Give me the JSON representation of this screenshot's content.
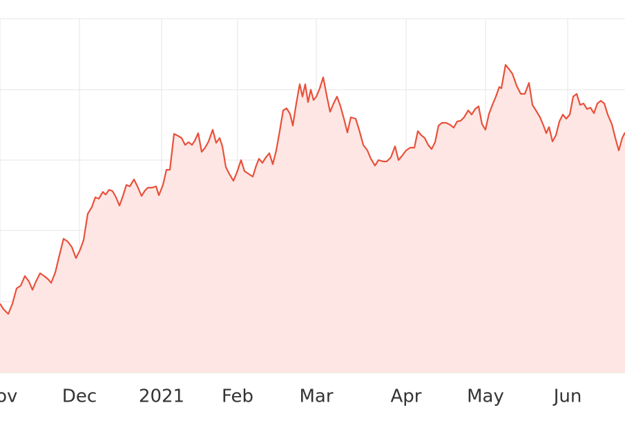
{
  "chart_data": {
    "type": "area",
    "color": "#e8503a",
    "fill": "#fde6e3",
    "grid": true,
    "xlim": [
      0,
      905
    ],
    "ylim": [
      0,
      513
    ],
    "xticks": [
      {
        "value": 0,
        "label": "Nov"
      },
      {
        "value": 115,
        "label": "Dec"
      },
      {
        "value": 234,
        "label": "2021"
      },
      {
        "value": 344,
        "label": "Feb"
      },
      {
        "value": 458,
        "label": "Mar"
      },
      {
        "value": 588,
        "label": "Apr"
      },
      {
        "value": 703,
        "label": "May"
      },
      {
        "value": 822,
        "label": "Jun"
      }
    ],
    "ygrid": [
      103,
      206,
      308,
      410,
      513
    ],
    "series": [
      {
        "x": [
          0,
          5,
          12,
          18,
          24,
          30,
          36,
          42,
          47,
          52,
          58,
          64,
          70,
          74,
          80,
          86,
          92,
          98,
          104,
          110,
          116,
          121,
          127,
          133,
          138,
          143,
          149,
          153,
          158,
          163,
          168,
          173,
          178,
          183,
          188,
          194,
          199,
          205,
          210,
          214,
          220,
          226,
          230,
          236,
          241,
          246,
          252,
          258,
          263,
          268,
          273,
          278,
          282,
          287,
          292,
          297,
          302,
          308,
          313,
          318,
          322,
          327,
          332,
          338,
          343,
          349,
          354,
          360,
          366,
          371,
          375,
          380,
          385,
          390,
          395,
          400,
          405,
          410,
          415,
          420,
          424,
          429,
          434,
          438,
          442,
          446,
          450,
          454,
          458,
          463,
          468,
          473,
          478,
          483,
          488,
          493,
          498,
          503,
          508,
          515,
          520,
          526,
          532,
          537,
          543,
          548,
          555,
          560,
          566,
          572,
          577,
          582,
          588,
          594,
          600,
          605,
          610,
          615,
          620,
          625,
          630,
          635,
          640,
          646,
          652,
          657,
          662,
          667,
          672,
          678,
          683,
          688,
          693,
          698,
          703,
          708,
          713,
          718,
          723,
          726,
          732,
          737,
          742,
          748,
          754,
          760,
          766,
          771,
          776,
          782,
          787,
          791,
          795,
          800,
          805,
          810,
          815,
          820,
          825,
          830,
          835,
          840,
          845,
          850,
          855,
          860,
          865,
          870,
          875,
          880,
          886,
          891,
          896,
          901,
          905
        ],
        "values": [
          100,
          92,
          85,
          100,
          122,
          126,
          140,
          132,
          120,
          132,
          144,
          140,
          135,
          130,
          145,
          170,
          194,
          190,
          182,
          166,
          178,
          192,
          230,
          240,
          254,
          252,
          262,
          258,
          265,
          263,
          254,
          242,
          256,
          272,
          270,
          280,
          270,
          256,
          264,
          268,
          268,
          270,
          257,
          272,
          294,
          294,
          346,
          343,
          340,
          330,
          334,
          330,
          336,
          347,
          320,
          326,
          335,
          352,
          333,
          340,
          328,
          298,
          288,
          278,
          290,
          308,
          292,
          288,
          284,
          300,
          310,
          304,
          312,
          318,
          302,
          322,
          350,
          380,
          383,
          375,
          358,
          390,
          418,
          400,
          418,
          392,
          410,
          395,
          400,
          412,
          428,
          402,
          378,
          390,
          400,
          386,
          368,
          348,
          370,
          368,
          352,
          330,
          322,
          310,
          300,
          308,
          306,
          306,
          312,
          328,
          308,
          314,
          322,
          326,
          326,
          350,
          344,
          340,
          330,
          324,
          334,
          358,
          362,
          362,
          359,
          355,
          364,
          365,
          370,
          380,
          374,
          382,
          386,
          360,
          352,
          375,
          388,
          400,
          414,
          412,
          446,
          440,
          433,
          416,
          404,
          404,
          420,
          388,
          380,
          370,
          358,
          347,
          356,
          335,
          344,
          364,
          374,
          368,
          374,
          400,
          404,
          388,
          390,
          382,
          384,
          376,
          390,
          394,
          390,
          374,
          360,
          340,
          322,
          340,
          348
        ]
      }
    ]
  }
}
